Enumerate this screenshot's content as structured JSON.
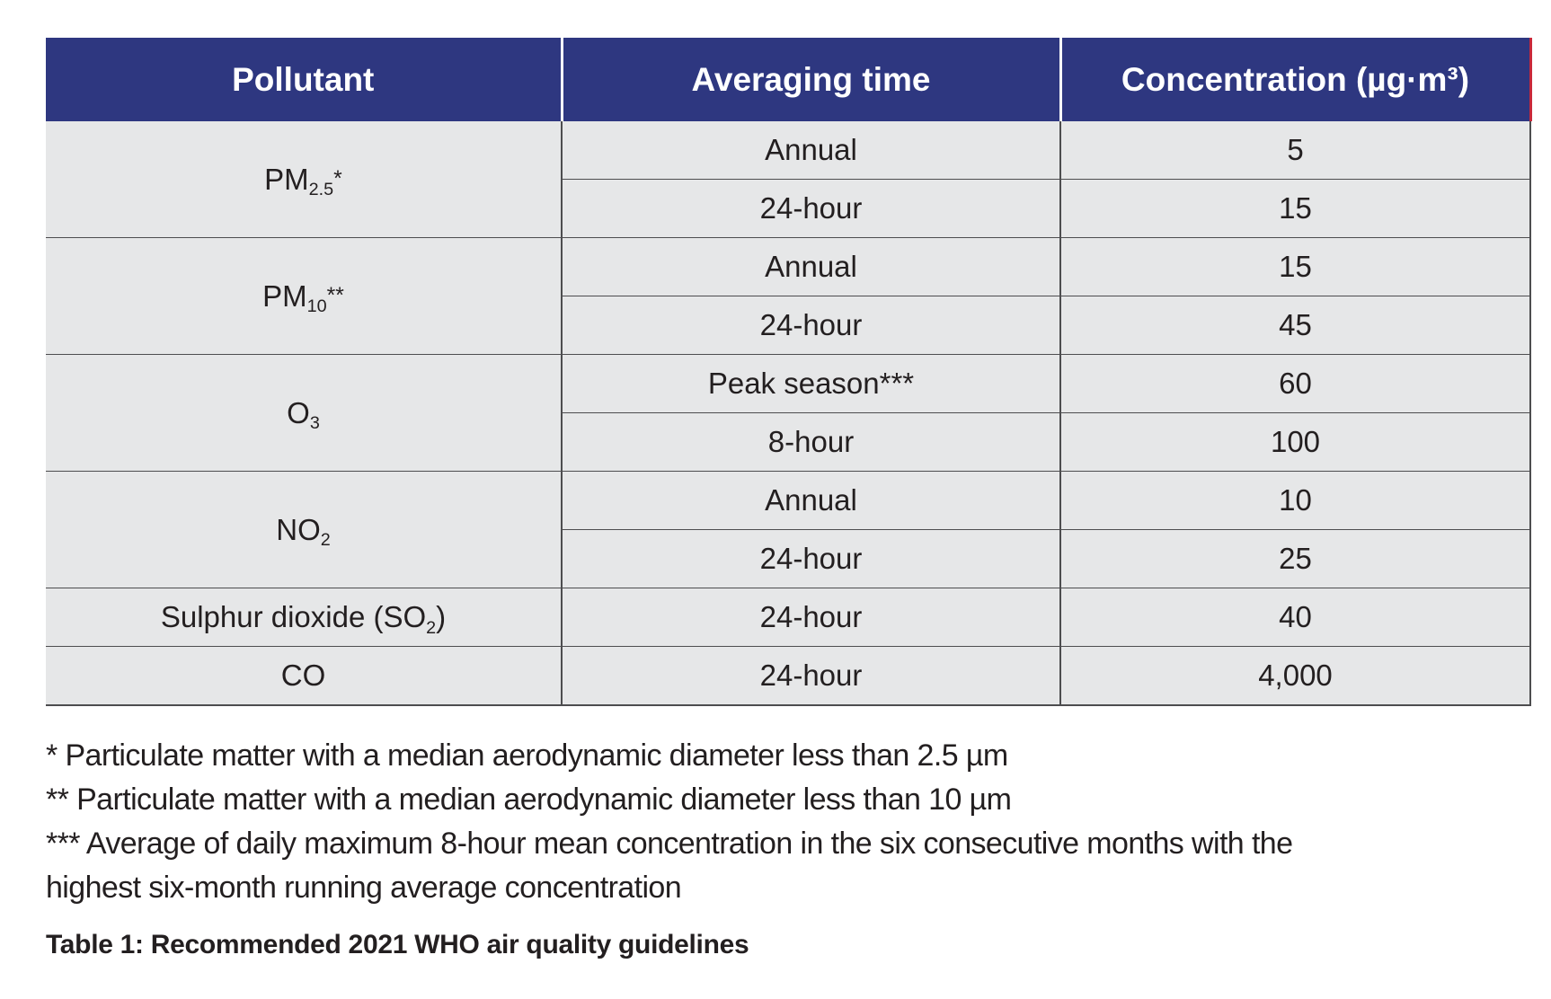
{
  "table": {
    "headers": [
      "Pollutant",
      "Averaging time",
      "Concentration (µg·m³)"
    ],
    "rows": [
      {
        "pollutant": "PM",
        "pollutant_sub": "2.5",
        "pollutant_sup": "*",
        "averaging_time": "Annual",
        "concentration": "5"
      },
      {
        "averaging_time": "24-hour",
        "concentration": "15"
      },
      {
        "pollutant": "PM",
        "pollutant_sub": "10",
        "pollutant_sup": "**",
        "averaging_time": "Annual",
        "concentration": "15"
      },
      {
        "averaging_time": "24-hour",
        "concentration": "45"
      },
      {
        "pollutant": "O",
        "pollutant_sub": "3",
        "averaging_time": "Peak season***",
        "concentration": "60"
      },
      {
        "averaging_time": "8-hour",
        "concentration": "100"
      },
      {
        "pollutant": "NO",
        "pollutant_sub": "2",
        "averaging_time": "Annual",
        "concentration": "10"
      },
      {
        "averaging_time": "24-hour",
        "concentration": "25"
      },
      {
        "pollutant": "Sulphur dioxide (SO",
        "pollutant_sub": "2",
        "pollutant_suffix": ")",
        "averaging_time": "24-hour",
        "concentration": "40"
      },
      {
        "pollutant": "CO",
        "averaging_time": "24-hour",
        "concentration": "4,000"
      }
    ]
  },
  "footnotes": [
    "* Particulate matter with a median aerodynamic diameter less than 2.5 µm",
    "** Particulate matter with a median aerodynamic diameter less than 10 µm",
    "*** Average of daily maximum 8-hour mean concentration in the six consecutive months with the highest six-month running average concentration"
  ],
  "caption": "Table 1: Recommended 2021 WHO air quality guidelines",
  "colors": {
    "header_bg": "#2e3780",
    "header_text": "#ffffff",
    "cell_bg": "#e6e7e8",
    "accent_edge": "#c9283a"
  }
}
